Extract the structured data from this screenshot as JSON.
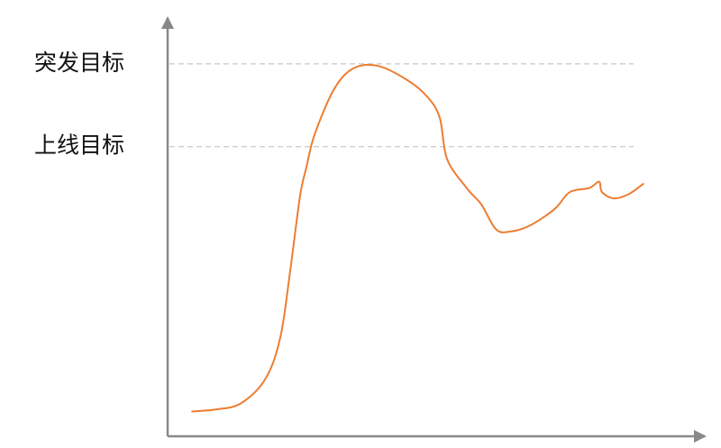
{
  "chart_data": {
    "type": "line",
    "title": "",
    "xlabel": "",
    "ylabel": "",
    "x_ticks": false,
    "y_ticks": false,
    "grid": false,
    "xlim": [
      0,
      100
    ],
    "ylim": [
      0,
      100
    ],
    "reference_lines": [
      {
        "label": "突发目标",
        "value": 90,
        "style": "dashed"
      },
      {
        "label": "上线目标",
        "value": 70,
        "style": "dashed"
      }
    ],
    "series": [
      {
        "color": "#ED7D31",
        "points": [
          [
            5,
            6
          ],
          [
            10,
            6.5
          ],
          [
            15,
            8
          ],
          [
            20,
            14
          ],
          [
            23,
            24
          ],
          [
            25,
            40
          ],
          [
            27,
            58
          ],
          [
            28.3,
            65
          ],
          [
            30,
            73
          ],
          [
            34,
            84
          ],
          [
            38,
            89
          ],
          [
            43,
            89.5
          ],
          [
            49,
            86
          ],
          [
            53,
            82
          ],
          [
            55.5,
            77
          ],
          [
            57,
            67
          ],
          [
            61,
            60
          ],
          [
            64,
            56
          ],
          [
            67,
            50
          ],
          [
            70,
            49.5
          ],
          [
            74,
            51
          ],
          [
            79,
            55
          ],
          [
            82,
            59
          ],
          [
            86,
            60
          ],
          [
            88,
            61.5
          ],
          [
            88.6,
            59
          ],
          [
            91,
            57.5
          ],
          [
            94,
            58.5
          ],
          [
            97,
            61
          ]
        ]
      }
    ],
    "colors": {
      "axis": "#888888",
      "reference_line": "#BBBBBB",
      "series": "#ED7D31",
      "label_text": "#111111"
    }
  }
}
